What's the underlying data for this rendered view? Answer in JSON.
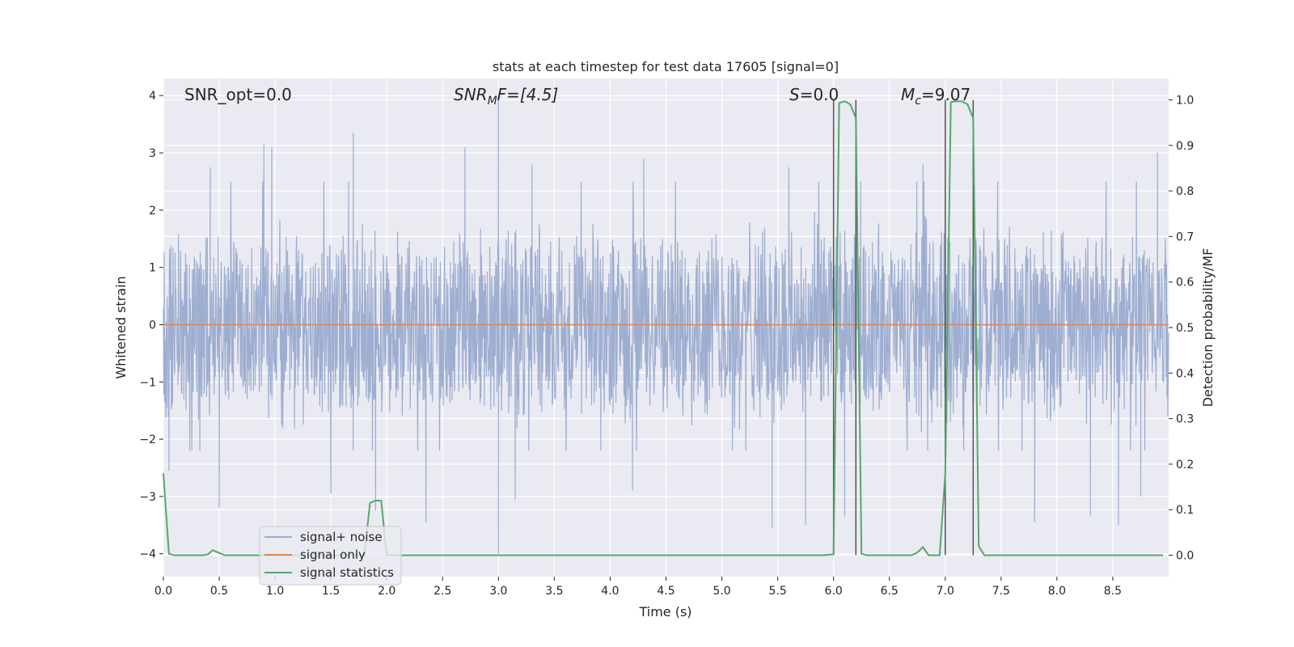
{
  "chart_data": {
    "type": "line",
    "title": "stats at each timestep for test data 17605 [signal=0]",
    "xlabel": "Time (s)",
    "ylabel": "Whitened strain",
    "y2label": "Detection probability/MF",
    "xlim": [
      0.0,
      9.0
    ],
    "ylim": [
      -4.4,
      4.3
    ],
    "y2lim": [
      -0.047,
      1.047
    ],
    "x_ticks": [
      0.0,
      0.5,
      1.0,
      1.5,
      2.0,
      2.5,
      3.0,
      3.5,
      4.0,
      4.5,
      5.0,
      5.5,
      6.0,
      6.5,
      7.0,
      7.5,
      8.0,
      8.5
    ],
    "x_tick_labels": [
      "0.0",
      "0.5",
      "1.0",
      "1.5",
      "2.0",
      "2.5",
      "3.0",
      "3.5",
      "4.0",
      "4.5",
      "5.0",
      "5.5",
      "6.0",
      "6.5",
      "7.0",
      "7.5",
      "8.0",
      "8.5"
    ],
    "y_ticks": [
      -4,
      -3,
      -2,
      -1,
      0,
      1,
      2,
      3,
      4
    ],
    "y_tick_labels": [
      "−4",
      "−3",
      "−2",
      "−1",
      "0",
      "1",
      "2",
      "3",
      "4"
    ],
    "y2_ticks": [
      0.0,
      0.1,
      0.2,
      0.3,
      0.4,
      0.5,
      0.6,
      0.7,
      0.8,
      0.9,
      1.0
    ],
    "y2_tick_labels": [
      "0.0",
      "0.1",
      "0.2",
      "0.3",
      "0.4",
      "0.5",
      "0.6",
      "0.7",
      "0.8",
      "0.9",
      "1.0"
    ],
    "grid": true,
    "legend_position": "lower-left",
    "annotations": {
      "snr_opt": "SNR_opt=0.0",
      "snr_mf_main": "SNR",
      "snr_mf_sub": "M",
      "snr_mf_rest": "F=[4.5]",
      "s_main": "S",
      "s_rest": "=0.0",
      "mc_main": "M",
      "mc_sub": "c",
      "mc_rest": "=9.07"
    },
    "series": [
      {
        "name": "signal+ noise",
        "color": "#9aabcf",
        "axis": "left",
        "kind": "noise",
        "typical_range": [
          -1.6,
          1.6
        ],
        "spikes": [
          [
            0.42,
            2.75
          ],
          [
            0.9,
            3.15
          ],
          [
            0.97,
            3.1
          ],
          [
            1.7,
            3.35
          ],
          [
            2.7,
            3.1
          ],
          [
            3.0,
            4.0
          ],
          [
            3.3,
            2.8
          ],
          [
            4.3,
            2.9
          ],
          [
            5.6,
            2.75
          ],
          [
            6.8,
            2.8
          ],
          [
            7.0,
            2.9
          ],
          [
            8.9,
            3.0
          ],
          [
            0.05,
            -2.55
          ],
          [
            0.5,
            -3.2
          ],
          [
            1.5,
            -2.95
          ],
          [
            1.9,
            -3.25
          ],
          [
            2.35,
            -3.45
          ],
          [
            3.0,
            -4.0
          ],
          [
            3.15,
            -3.05
          ],
          [
            4.2,
            -2.9
          ],
          [
            5.45,
            -3.55
          ],
          [
            5.75,
            -3.5
          ],
          [
            6.1,
            -3.35
          ],
          [
            7.8,
            -3.45
          ],
          [
            8.3,
            -3.35
          ],
          [
            8.55,
            -3.5
          ],
          [
            8.75,
            -3.0
          ]
        ]
      },
      {
        "name": "signal only",
        "color": "#dd8452",
        "axis": "left",
        "x": [
          0.0,
          9.0
        ],
        "y": [
          0.0,
          0.0
        ]
      },
      {
        "name": "signal statistics",
        "color": "#55a868",
        "axis": "right",
        "x": [
          0.0,
          0.05,
          0.1,
          0.2,
          0.3,
          0.35,
          0.4,
          0.44,
          0.5,
          0.55,
          0.6,
          0.7,
          0.8,
          0.9,
          1.0,
          1.2,
          1.4,
          1.6,
          1.8,
          1.85,
          1.9,
          1.95,
          2.0,
          2.05,
          2.1,
          2.5,
          3.0,
          3.5,
          4.0,
          4.5,
          5.0,
          5.5,
          5.9,
          6.0,
          6.05,
          6.1,
          6.15,
          6.2,
          6.25,
          6.3,
          6.5,
          6.6,
          6.7,
          6.75,
          6.8,
          6.85,
          6.9,
          6.95,
          7.0,
          7.05,
          7.1,
          7.15,
          7.2,
          7.25,
          7.3,
          7.35,
          7.4,
          7.6,
          7.8,
          8.0,
          8.5,
          8.95
        ],
        "y": [
          0.18,
          0.003,
          0.0,
          0.0,
          0.0,
          0.0,
          0.002,
          0.011,
          0.005,
          0.0,
          0.0,
          0.0,
          0.0,
          0.0,
          0.0,
          0.0,
          0.0,
          0.0,
          0.0,
          0.115,
          0.12,
          0.12,
          0.0,
          0.0,
          0.0,
          0.0,
          0.0,
          0.0,
          0.0,
          0.0,
          0.0,
          0.0,
          0.0,
          0.002,
          0.993,
          0.997,
          0.99,
          0.96,
          0.003,
          0.0,
          0.0,
          0.0,
          0.0,
          0.006,
          0.018,
          0.0,
          0.0,
          0.0,
          0.18,
          0.995,
          0.997,
          0.997,
          0.99,
          0.96,
          0.02,
          0.0,
          0.0,
          0.0,
          0.0,
          0.0,
          0.0,
          0.0
        ]
      }
    ],
    "vertical_markers": [
      6.0,
      6.2,
      7.0,
      7.25
    ],
    "vertical_marker_color": "#555555"
  },
  "colors": {
    "plot_background": "#eaeaf2",
    "grid": "#ffffff"
  }
}
